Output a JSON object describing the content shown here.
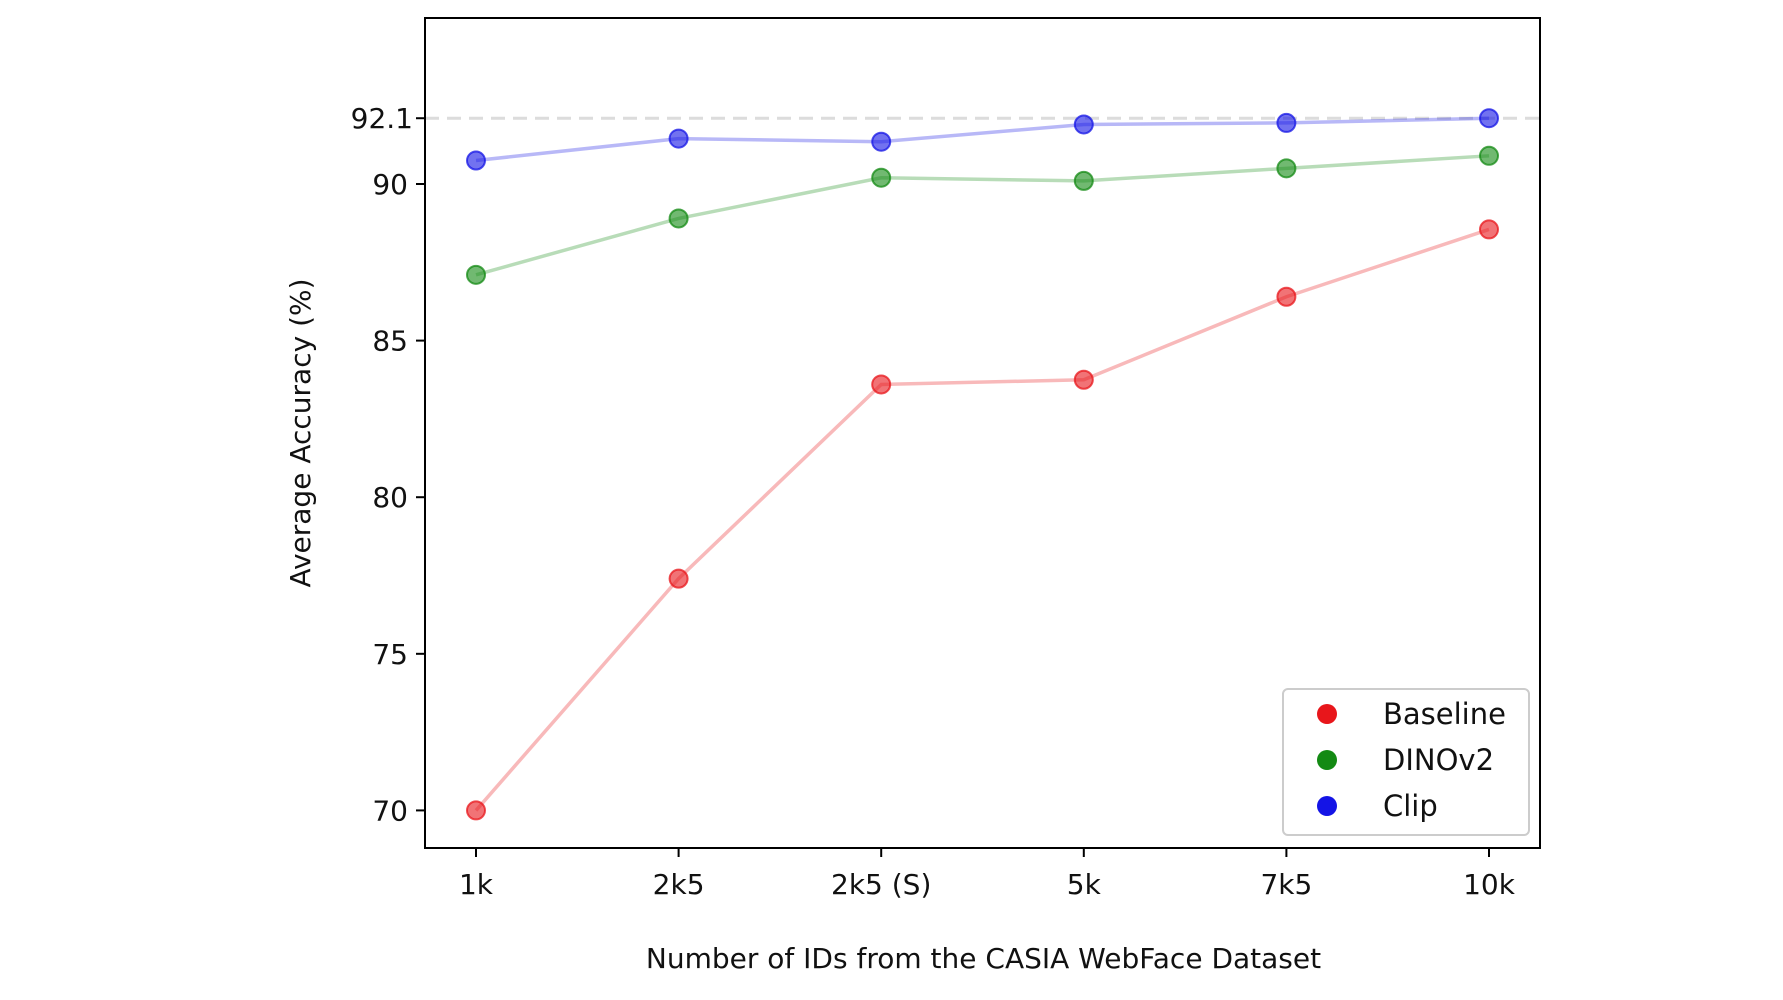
{
  "chart_data": {
    "type": "line",
    "categories": [
      "1k",
      "2k5",
      "2k5 (S)",
      "5k",
      "7k5",
      "10k"
    ],
    "series": [
      {
        "name": "Baseline",
        "color": "#e8161b",
        "values": [
          70.0,
          77.4,
          83.6,
          83.75,
          86.4,
          88.55
        ]
      },
      {
        "name": "DINOv2",
        "color": "#138a13",
        "values": [
          87.1,
          88.9,
          90.2,
          90.1,
          90.5,
          90.9
        ]
      },
      {
        "name": "Clip",
        "color": "#1414e6",
        "values": [
          90.75,
          91.45,
          91.35,
          91.9,
          91.95,
          92.1
        ]
      }
    ],
    "reference_line": {
      "value": 92.1,
      "label": "92.1"
    },
    "yticks": [
      70,
      75,
      80,
      85,
      90
    ],
    "ylim": [
      68.8,
      95.3
    ],
    "xlabel": "Number of IDs from the CASIA WebFace Dataset",
    "ylabel": "Average Accuracy (%)",
    "legend_position": "lower-right"
  }
}
